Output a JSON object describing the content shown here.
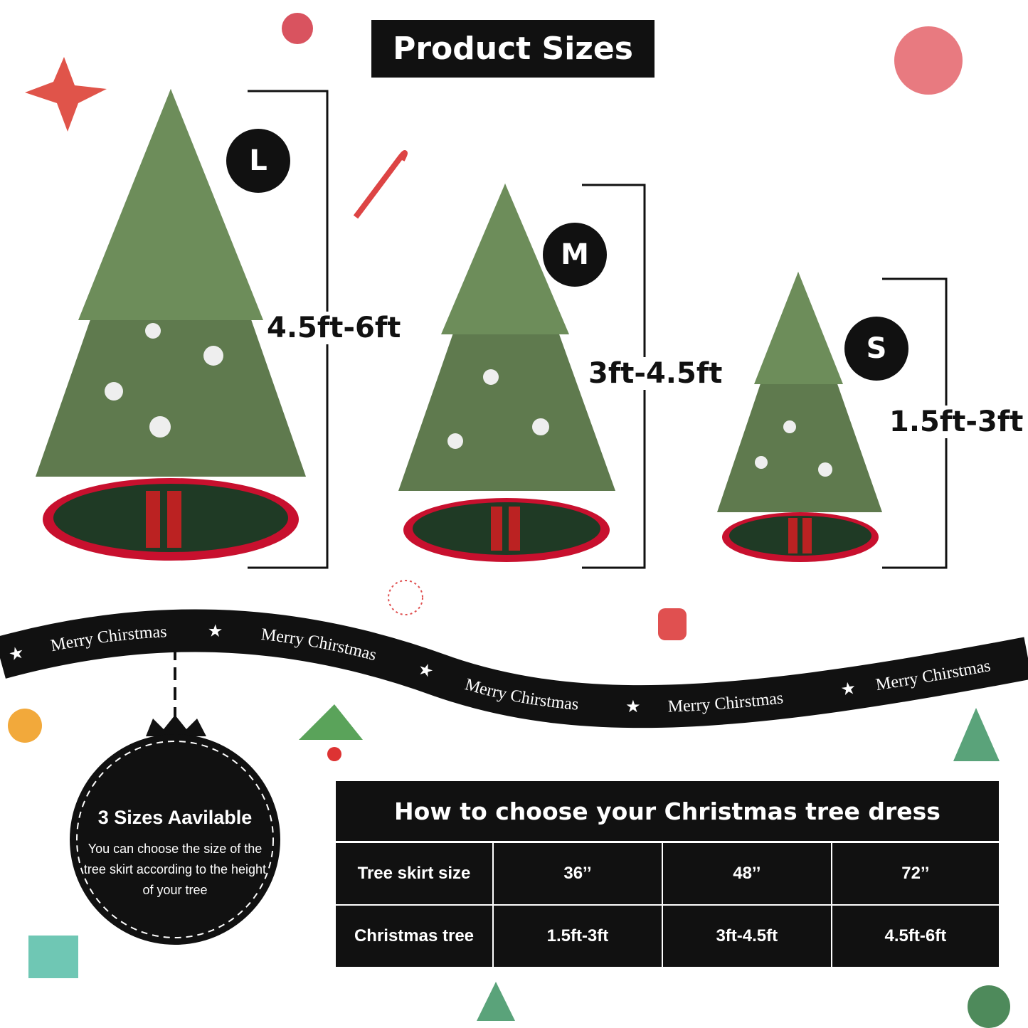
{
  "title": "Product Sizes",
  "sizes": [
    {
      "badge": "L",
      "range": "4.5ft-6ft"
    },
    {
      "badge": "M",
      "range": "3ft-4.5ft"
    },
    {
      "badge": "S",
      "range": "1.5ft-3ft"
    }
  ],
  "ribbon": {
    "text": "Merry Chirstmas",
    "star": "★"
  },
  "circle": {
    "title": "3 Sizes Aavilable",
    "description": "You can choose the size of the tree skirt according to the height of your tree"
  },
  "table": {
    "header": "How to choose your Christmas tree dress",
    "rows": [
      {
        "label": "Tree skirt size",
        "values": [
          "36’’",
          "48’’",
          "72’’"
        ]
      },
      {
        "label": "Christmas tree",
        "values": [
          "1.5ft-3ft",
          "3ft-4.5ft",
          "4.5ft-6ft"
        ]
      }
    ]
  },
  "colors": {
    "ink": "#111111",
    "tree": "#5f7a4e",
    "skirt": "#1f3a25",
    "skirt_edge": "#c8102e"
  }
}
